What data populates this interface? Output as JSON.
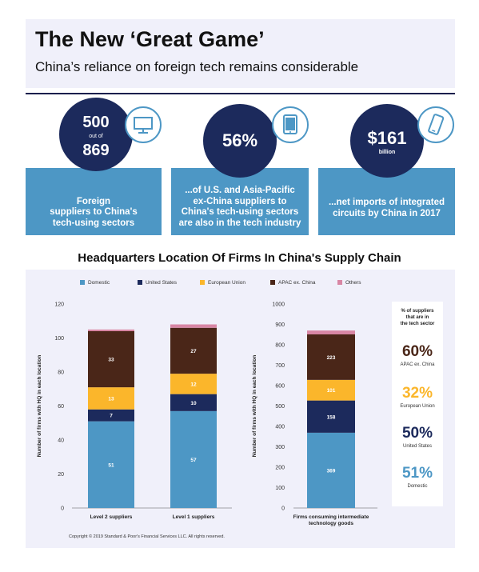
{
  "header": {
    "title": "The New ‘Great Game’",
    "subtitle": "China’s reliance on foreign tech remains considerable"
  },
  "stats": [
    {
      "value_top": "500",
      "value_mid": "out of",
      "value_bottom": "869",
      "icon": "monitor-icon",
      "desc": [
        "Foreign",
        "suppliers to China's",
        "tech-using sectors"
      ]
    },
    {
      "value_top": "56%",
      "icon": "tablet-icon",
      "desc": [
        "...of U.S. and Asia-Pacific",
        "ex-China suppliers to",
        "China's tech-using sectors",
        "are also in the tech industry"
      ]
    },
    {
      "value_top": "$161",
      "value_mid": "billion",
      "icon": "smartphone-icon",
      "desc": [
        "...net imports of integrated",
        "circuits by China in 2017"
      ]
    }
  ],
  "chart_title": "Headquarters Location Of Firms In China's Supply Chain",
  "legend": [
    {
      "label": "Domestic",
      "color": "#4d97c5"
    },
    {
      "label": "United States",
      "color": "#1c2a5c"
    },
    {
      "label": "European Union",
      "color": "#fbb62b"
    },
    {
      "label": "APAC ex. China",
      "color": "#4a2618"
    },
    {
      "label": "Others",
      "color": "#d886a4"
    }
  ],
  "chart_data": [
    {
      "type": "bar",
      "stacked": true,
      "ylabel": "Number of firms with HQ in each location",
      "ylim": [
        0,
        120
      ],
      "yticks": [
        0,
        20,
        40,
        60,
        80,
        100,
        120
      ],
      "categories": [
        "Level 2 suppliers",
        "Level 1 suppliers"
      ],
      "series": [
        {
          "name": "Domestic",
          "values": [
            51,
            57
          ],
          "labels": [
            "51",
            "57"
          ]
        },
        {
          "name": "United States",
          "values": [
            7,
            10
          ],
          "labels": [
            "7",
            "10"
          ]
        },
        {
          "name": "European Union",
          "values": [
            13,
            12
          ],
          "labels": [
            "13",
            "12"
          ]
        },
        {
          "name": "APAC ex. China",
          "values": [
            33,
            27
          ],
          "labels": [
            "33",
            "27"
          ]
        },
        {
          "name": "Others",
          "values": [
            1,
            2
          ],
          "labels": [
            "",
            ""
          ]
        }
      ]
    },
    {
      "type": "bar",
      "stacked": true,
      "ylabel": "Number of firms with HQ in each location",
      "ylim": [
        0,
        1000
      ],
      "yticks": [
        0,
        100,
        200,
        300,
        400,
        500,
        600,
        700,
        800,
        900,
        1000
      ],
      "categories": [
        "Firms consuming intermediate technology goods"
      ],
      "category_lines": [
        [
          "Firms consuming intermediate",
          "technology goods"
        ]
      ],
      "series": [
        {
          "name": "Domestic",
          "values": [
            369
          ],
          "labels": [
            "369"
          ]
        },
        {
          "name": "United States",
          "values": [
            158
          ],
          "labels": [
            "158"
          ]
        },
        {
          "name": "European Union",
          "values": [
            101
          ],
          "labels": [
            "101"
          ]
        },
        {
          "name": "APAC ex. China",
          "values": [
            223
          ],
          "labels": [
            "223"
          ]
        },
        {
          "name": "Others",
          "values": [
            19
          ],
          "labels": [
            ""
          ]
        }
      ]
    }
  ],
  "side_panel": {
    "header": [
      "% of suppliers",
      "that are in",
      "the tech sector"
    ],
    "items": [
      {
        "value": "60%",
        "label": "APAC ex. China",
        "color": "#4a2618"
      },
      {
        "value": "32%",
        "label": "European Union",
        "color": "#fbb62b"
      },
      {
        "value": "50%",
        "label": "United States",
        "color": "#1c2a5c"
      },
      {
        "value": "51%",
        "label": "Domestic",
        "color": "#4d97c5"
      }
    ]
  },
  "copyright": "Copyright © 2019 Standard & Poor's Financial Services LLC. All rights reserved."
}
